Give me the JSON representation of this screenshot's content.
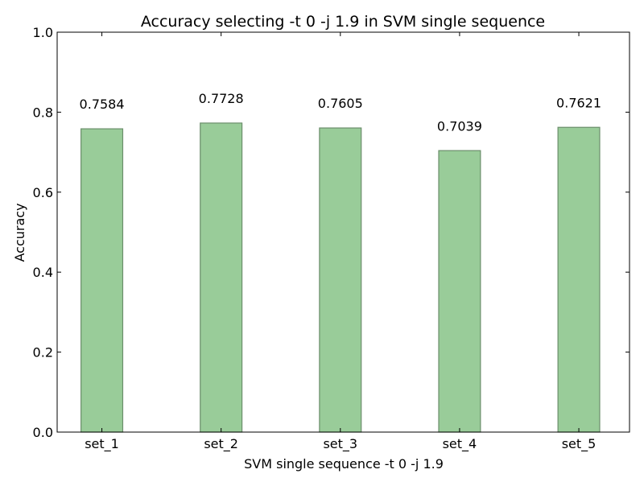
{
  "chart_data": {
    "type": "bar",
    "title": "Accuracy selecting -t 0 -j 1.9 in SVM single sequence",
    "xlabel": "SVM single sequence -t 0 -j 1.9",
    "ylabel": "Accuracy",
    "categories": [
      "set_1",
      "set_2",
      "set_3",
      "set_4",
      "set_5"
    ],
    "values": [
      0.7584,
      0.7728,
      0.7605,
      0.7039,
      0.7621
    ],
    "data_labels": [
      "0.7584",
      "0.7728",
      "0.7605",
      "0.7039",
      "0.7621"
    ],
    "ylim": [
      0.0,
      1.0
    ],
    "yticks": [
      "0.0",
      "0.2",
      "0.4",
      "0.6",
      "0.8",
      "1.0"
    ],
    "xlim": [
      -0.2,
      4.6
    ],
    "grid": false,
    "bar_color": "#99cc99",
    "bar_edge_color": "#6b8e6b"
  }
}
